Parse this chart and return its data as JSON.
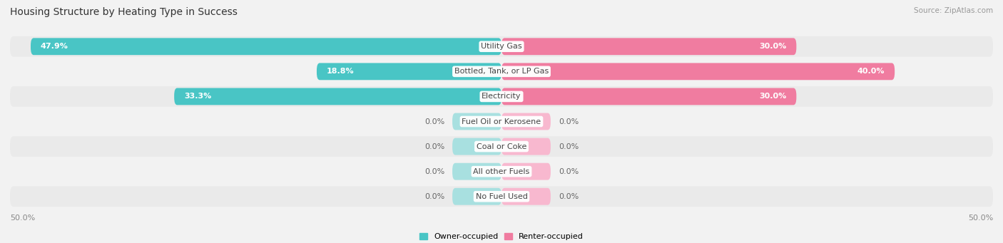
{
  "title": "Housing Structure by Heating Type in Success",
  "source": "Source: ZipAtlas.com",
  "categories": [
    "Utility Gas",
    "Bottled, Tank, or LP Gas",
    "Electricity",
    "Fuel Oil or Kerosene",
    "Coal or Coke",
    "All other Fuels",
    "No Fuel Used"
  ],
  "owner_values": [
    47.9,
    18.8,
    33.3,
    0.0,
    0.0,
    0.0,
    0.0
  ],
  "renter_values": [
    30.0,
    40.0,
    30.0,
    0.0,
    0.0,
    0.0,
    0.0
  ],
  "owner_color": "#49C5C5",
  "renter_color": "#F07CA0",
  "owner_color_light": "#A8E0E0",
  "renter_color_light": "#F8B8CF",
  "background_color": "#F2F2F2",
  "row_bg_even": "#EAEAEA",
  "row_bg_odd": "#F2F2F2",
  "axis_max": 50.0,
  "min_bar_width": 5.0,
  "title_fontsize": 10,
  "label_fontsize": 8,
  "value_fontsize": 8,
  "tick_fontsize": 8,
  "figsize": [
    14.06,
    3.41
  ],
  "dpi": 100
}
